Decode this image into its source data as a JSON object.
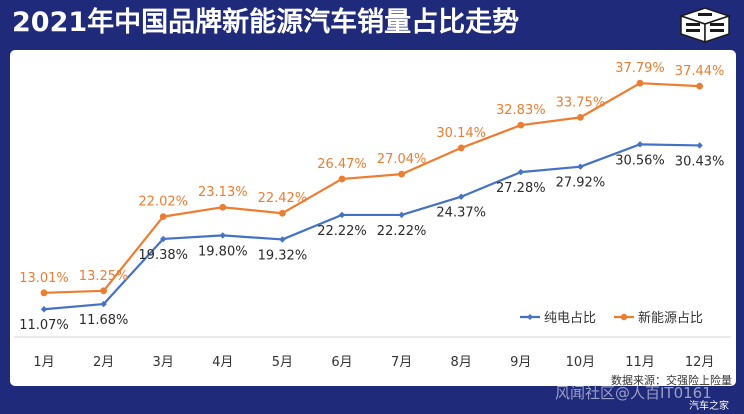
{
  "header": {
    "title": "2021年中国品牌新能源汽车销量占比走势"
  },
  "logo": {
    "icon": "cube-logo-icon"
  },
  "watermark": {
    "main": "风闻社区@人百IT0161",
    "sub": "汽车之家"
  },
  "chart_data": {
    "type": "line",
    "title": "2021年中国品牌新能源汽车销量占比走势",
    "categories": [
      "1月",
      "2月",
      "3月",
      "4月",
      "5月",
      "6月",
      "7月",
      "8月",
      "9月",
      "10月",
      "11月",
      "12月"
    ],
    "series": [
      {
        "name": "纯电占比",
        "color": "#4472c4",
        "values": [
          11.07,
          11.68,
          19.38,
          19.8,
          19.32,
          22.22,
          22.22,
          24.37,
          27.28,
          27.92,
          30.56,
          30.43
        ],
        "labels": [
          "11.07%",
          "11.68%",
          "19.38%",
          "19.80%",
          "19.32%",
          "22.22%",
          "22.22%",
          "24.37%",
          "27.28%",
          "27.92%",
          "30.56%",
          "30.43%"
        ]
      },
      {
        "name": "新能源占比",
        "color": "#ed7d31",
        "values": [
          13.01,
          13.25,
          22.02,
          23.13,
          22.42,
          26.47,
          27.04,
          30.14,
          32.83,
          33.75,
          37.79,
          37.44
        ],
        "labels": [
          "13.01%",
          "13.25%",
          "22.02%",
          "23.13%",
          "22.42%",
          "26.47%",
          "27.04%",
          "30.14%",
          "32.83%",
          "33.75%",
          "37.79%",
          "37.44%"
        ]
      }
    ],
    "source": "数据来源：交强险上险量",
    "legend": "bottom-right",
    "grid": false,
    "ylim": [
      5,
      40
    ]
  }
}
